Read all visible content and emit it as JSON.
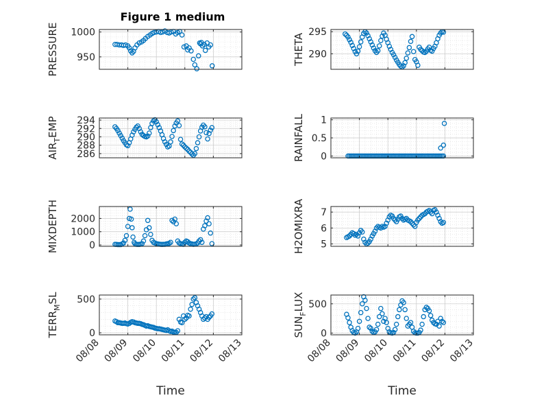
{
  "figure": {
    "title": "Figure 1 medium",
    "marker_color": "#0072BD"
  },
  "x_tick_labels": [
    "08/08",
    "08/09",
    "08/10",
    "08/11",
    "08/12",
    "08/13"
  ],
  "chart_data": [
    {
      "type": "scatter",
      "ylabel_main": "PRESSURE",
      "ylabel_sub": "",
      "yticks": [
        950,
        1000
      ],
      "ylim": [
        925,
        1005
      ],
      "xlim": [
        0,
        5
      ],
      "grid": true,
      "x": [
        0.55,
        0.62,
        0.7,
        0.78,
        0.85,
        0.92,
        1.0,
        1.05,
        1.1,
        1.15,
        1.2,
        1.25,
        1.32,
        1.4,
        1.48,
        1.55,
        1.62,
        1.7,
        1.78,
        1.85,
        1.92,
        2.0,
        2.08,
        2.15,
        2.22,
        2.3,
        2.38,
        2.45,
        2.52,
        2.6,
        2.68,
        2.75,
        2.82,
        2.9,
        2.97,
        3.05,
        3.1,
        3.15,
        3.22,
        3.3,
        3.35,
        3.42,
        3.48,
        3.52,
        3.55,
        3.58,
        3.62,
        3.68,
        3.72,
        3.78,
        3.84,
        3.9,
        3.96
      ],
      "y": [
        975,
        975,
        974,
        974,
        973,
        974,
        972,
        968,
        962,
        958,
        961,
        968,
        974,
        978,
        980,
        983,
        987,
        991,
        994,
        997,
        999,
        1000,
        1001,
        999,
        1000,
        1002,
        999,
        998,
        1000,
        1001,
        996,
        999,
        1001,
        994,
        970,
        972,
        964,
        968,
        962,
        945,
        934,
        926,
        952,
        978,
        976,
        979,
        972,
        975,
        963,
        978,
        970,
        974,
        932
      ]
    },
    {
      "type": "scatter",
      "ylabel_main": "THETA",
      "ylabel_sub": "",
      "yticks": [
        290,
        295
      ],
      "ylim": [
        286.5,
        295.5
      ],
      "xlim": [
        0,
        5
      ],
      "grid": true,
      "x": [
        0.5,
        0.55,
        0.6,
        0.65,
        0.7,
        0.75,
        0.8,
        0.85,
        0.9,
        0.95,
        1.0,
        1.05,
        1.1,
        1.15,
        1.2,
        1.25,
        1.3,
        1.35,
        1.4,
        1.45,
        1.5,
        1.55,
        1.6,
        1.65,
        1.7,
        1.75,
        1.8,
        1.85,
        1.9,
        1.95,
        2.0,
        2.05,
        2.1,
        2.15,
        2.2,
        2.25,
        2.3,
        2.35,
        2.4,
        2.45,
        2.5,
        2.55,
        2.6,
        2.65,
        2.7,
        2.75,
        2.8,
        2.85,
        2.9,
        2.95,
        3.0,
        3.05,
        3.1,
        3.15,
        3.2,
        3.25,
        3.3,
        3.35,
        3.4,
        3.45,
        3.5,
        3.55,
        3.6,
        3.65,
        3.7,
        3.75,
        3.8,
        3.85,
        3.9,
        3.95
      ],
      "y": [
        294.5,
        294.2,
        293.8,
        293.2,
        292.6,
        291.9,
        291.2,
        290.5,
        290.0,
        290.6,
        291.6,
        292.7,
        293.8,
        294.6,
        295.0,
        294.7,
        294.1,
        293.4,
        292.7,
        292.0,
        291.3,
        290.7,
        290.3,
        290.7,
        291.8,
        293.0,
        294.0,
        294.7,
        294.2,
        293.3,
        292.5,
        291.7,
        291.0,
        290.3,
        289.8,
        289.2,
        288.6,
        288.1,
        287.6,
        287.2,
        287.0,
        287.3,
        288.0,
        289.0,
        290.2,
        291.4,
        292.8,
        293.9,
        290.5,
        288.7,
        288.2,
        287.4,
        291.5,
        291.0,
        290.7,
        290.4,
        290.3,
        290.6,
        291.1,
        291.5,
        290.8,
        290.6,
        291.2,
        291.7,
        292.5,
        293.4,
        294.2,
        294.7,
        295.0,
        294.9
      ]
    },
    {
      "type": "scatter",
      "ylabel_main": "AIR",
      "ylabel_sub": "T",
      "ylabel_tail": "EMP",
      "yticks": [
        286,
        288,
        290,
        292,
        294
      ],
      "ylim": [
        285,
        294.5
      ],
      "xlim": [
        0,
        5
      ],
      "grid": true,
      "x": [
        0.55,
        0.6,
        0.65,
        0.7,
        0.75,
        0.8,
        0.85,
        0.9,
        0.95,
        1.0,
        1.05,
        1.1,
        1.15,
        1.2,
        1.25,
        1.3,
        1.35,
        1.4,
        1.45,
        1.5,
        1.55,
        1.6,
        1.65,
        1.7,
        1.75,
        1.8,
        1.85,
        1.9,
        1.95,
        2.0,
        2.05,
        2.1,
        2.15,
        2.2,
        2.25,
        2.3,
        2.35,
        2.4,
        2.45,
        2.5,
        2.55,
        2.6,
        2.65,
        2.7,
        2.75,
        2.8,
        2.85,
        2.9,
        2.95,
        3.0,
        3.05,
        3.1,
        3.15,
        3.2,
        3.25,
        3.3,
        3.35,
        3.4,
        3.45,
        3.5,
        3.55,
        3.6,
        3.65,
        3.7,
        3.75,
        3.8,
        3.85,
        3.9,
        3.95
      ],
      "y": [
        292.4,
        292.0,
        291.5,
        290.9,
        290.3,
        289.7,
        289.1,
        288.6,
        288.1,
        287.9,
        288.6,
        289.5,
        290.4,
        291.2,
        291.8,
        292.3,
        292.6,
        292.0,
        291.2,
        290.6,
        290.3,
        290.1,
        290.0,
        290.2,
        290.9,
        292.2,
        293.2,
        293.8,
        294.1,
        293.6,
        292.9,
        292.2,
        291.4,
        290.5,
        289.6,
        288.8,
        288.2,
        287.6,
        287.8,
        288.8,
        290.1,
        291.5,
        292.6,
        293.3,
        293.8,
        292.7,
        289.4,
        288.3,
        288.0,
        287.6,
        287.3,
        287.0,
        286.6,
        286.3,
        285.9,
        285.6,
        286.0,
        287.2,
        288.6,
        290.0,
        291.4,
        292.3,
        292.8,
        292.4,
        291.0,
        289.5,
        290.8,
        291.6,
        292.2
      ]
    },
    {
      "type": "scatter",
      "ylabel_main": "RAINFALL",
      "ylabel_sub": "",
      "yticks": [
        0,
        0.5,
        1
      ],
      "ylim": [
        -0.05,
        1.05
      ],
      "xlim": [
        0,
        5
      ],
      "grid": true,
      "x": [
        0.6,
        0.65,
        0.7,
        0.75,
        0.8,
        0.85,
        0.9,
        0.95,
        1.0,
        1.05,
        1.1,
        1.15,
        1.2,
        1.25,
        1.3,
        1.35,
        1.4,
        1.45,
        1.5,
        1.55,
        1.6,
        1.65,
        1.7,
        1.75,
        1.8,
        1.85,
        1.9,
        1.95,
        2.0,
        2.05,
        2.1,
        2.15,
        2.2,
        2.25,
        2.3,
        2.35,
        2.4,
        2.45,
        2.5,
        2.55,
        2.6,
        2.65,
        2.7,
        2.75,
        2.8,
        2.85,
        2.9,
        2.95,
        3.0,
        3.05,
        3.1,
        3.15,
        3.2,
        3.25,
        3.3,
        3.35,
        3.4,
        3.45,
        3.5,
        3.55,
        3.6,
        3.65,
        3.7,
        3.75,
        3.8,
        3.85,
        3.9,
        3.95,
        3.85,
        3.95,
        3.98
      ],
      "y": [
        0,
        0,
        0,
        0,
        0,
        0,
        0,
        0,
        0,
        0,
        0,
        0,
        0,
        0,
        0,
        0,
        0,
        0,
        0,
        0,
        0,
        0,
        0,
        0,
        0,
        0,
        0,
        0,
        0,
        0,
        0,
        0,
        0,
        0,
        0,
        0,
        0,
        0,
        0,
        0,
        0,
        0,
        0,
        0,
        0,
        0,
        0,
        0,
        0,
        0,
        0,
        0,
        0,
        0,
        0,
        0,
        0,
        0,
        0,
        0,
        0,
        0,
        0,
        0,
        0,
        0,
        0,
        0,
        0.22,
        0.3,
        0.9
      ]
    },
    {
      "type": "scatter",
      "ylabel_main": "MIXDEPTH",
      "ylabel_sub": "",
      "yticks": [
        0,
        1000,
        2000
      ],
      "ylim": [
        -100,
        2900
      ],
      "xlim": [
        0,
        5
      ],
      "grid": true,
      "x": [
        0.55,
        0.6,
        0.65,
        0.7,
        0.75,
        0.8,
        0.85,
        0.9,
        0.95,
        1.0,
        1.05,
        1.08,
        1.12,
        1.15,
        1.18,
        1.22,
        1.25,
        1.3,
        1.35,
        1.4,
        1.45,
        1.5,
        1.55,
        1.6,
        1.65,
        1.7,
        1.75,
        1.8,
        1.85,
        1.9,
        1.95,
        2.0,
        2.05,
        2.1,
        2.15,
        2.2,
        2.25,
        2.3,
        2.35,
        2.4,
        2.45,
        2.5,
        2.55,
        2.6,
        2.65,
        2.7,
        2.75,
        2.8,
        2.85,
        2.9,
        2.95,
        3.0,
        3.05,
        3.1,
        3.15,
        3.2,
        3.25,
        3.3,
        3.35,
        3.4,
        3.45,
        3.5,
        3.55,
        3.6,
        3.65,
        3.7,
        3.75,
        3.8,
        3.85,
        3.9,
        3.95
      ],
      "y": [
        50,
        40,
        30,
        30,
        30,
        80,
        150,
        350,
        700,
        1400,
        2000,
        2700,
        1950,
        1300,
        600,
        200,
        100,
        50,
        40,
        40,
        60,
        100,
        300,
        700,
        1150,
        1850,
        1300,
        800,
        350,
        200,
        150,
        100,
        80,
        60,
        50,
        40,
        50,
        50,
        80,
        100,
        120,
        200,
        1850,
        1750,
        1950,
        1600,
        300,
        150,
        100,
        80,
        50,
        200,
        300,
        250,
        150,
        100,
        80,
        50,
        60,
        80,
        150,
        300,
        400,
        200,
        1200,
        1450,
        1800,
        2050,
        1600,
        900,
        100
      ]
    },
    {
      "type": "scatter",
      "ylabel_main": "H2OMIXRA",
      "ylabel_sub": "",
      "yticks": [
        5,
        6,
        7
      ],
      "ylim": [
        4.85,
        7.35
      ],
      "xlim": [
        0,
        5
      ],
      "grid": true,
      "x": [
        0.55,
        0.6,
        0.65,
        0.7,
        0.75,
        0.8,
        0.85,
        0.9,
        0.95,
        1.0,
        1.05,
        1.1,
        1.15,
        1.2,
        1.25,
        1.3,
        1.35,
        1.4,
        1.45,
        1.5,
        1.55,
        1.6,
        1.65,
        1.7,
        1.75,
        1.8,
        1.85,
        1.9,
        1.95,
        2.0,
        2.05,
        2.1,
        2.15,
        2.2,
        2.25,
        2.3,
        2.35,
        2.4,
        2.45,
        2.5,
        2.55,
        2.6,
        2.65,
        2.7,
        2.75,
        2.8,
        2.85,
        2.9,
        2.95,
        3.0,
        3.05,
        3.1,
        3.15,
        3.2,
        3.25,
        3.3,
        3.35,
        3.4,
        3.45,
        3.5,
        3.55,
        3.6,
        3.65,
        3.7,
        3.75,
        3.8,
        3.85,
        3.9,
        3.95
      ],
      "y": [
        5.4,
        5.45,
        5.5,
        5.6,
        5.7,
        5.65,
        5.55,
        5.6,
        5.5,
        5.7,
        5.85,
        5.75,
        5.3,
        5.1,
        5.0,
        5.05,
        5.15,
        5.3,
        5.5,
        5.65,
        5.8,
        6.0,
        6.1,
        6.05,
        6.0,
        6.1,
        6.05,
        6.1,
        6.3,
        6.5,
        6.7,
        6.8,
        6.75,
        6.6,
        6.5,
        6.4,
        6.55,
        6.7,
        6.75,
        6.6,
        6.5,
        6.55,
        6.6,
        6.5,
        6.45,
        6.4,
        6.3,
        6.2,
        6.1,
        6.35,
        6.5,
        6.6,
        6.7,
        6.8,
        6.85,
        6.9,
        7.0,
        7.05,
        7.1,
        7.0,
        6.9,
        7.1,
        7.15,
        7.0,
        6.8,
        6.6,
        6.4,
        6.3,
        6.35
      ]
    },
    {
      "type": "scatter",
      "ylabel_main": "TERR",
      "ylabel_sub": "M",
      "ylabel_tail": "SL",
      "yticks": [
        0,
        500
      ],
      "ylim": [
        -30,
        560
      ],
      "xlim": [
        0,
        5
      ],
      "grid": true,
      "x": [
        0.55,
        0.6,
        0.65,
        0.7,
        0.75,
        0.8,
        0.85,
        0.9,
        0.95,
        1.0,
        1.05,
        1.1,
        1.15,
        1.2,
        1.25,
        1.3,
        1.35,
        1.4,
        1.45,
        1.5,
        1.55,
        1.6,
        1.65,
        1.7,
        1.75,
        1.8,
        1.85,
        1.9,
        1.95,
        2.0,
        2.05,
        2.1,
        2.15,
        2.2,
        2.25,
        2.3,
        2.35,
        2.4,
        2.45,
        2.5,
        2.55,
        2.6,
        2.65,
        2.7,
        2.75,
        2.8,
        2.85,
        2.9,
        2.95,
        3.0,
        3.05,
        3.1,
        3.15,
        3.2,
        3.25,
        3.3,
        3.35,
        3.4,
        3.45,
        3.5,
        3.55,
        3.6,
        3.65,
        3.7,
        3.75,
        3.8,
        3.85,
        3.9,
        3.95
      ],
      "y": [
        175,
        165,
        150,
        150,
        145,
        140,
        140,
        145,
        135,
        130,
        140,
        155,
        165,
        160,
        150,
        145,
        140,
        140,
        135,
        125,
        120,
        110,
        100,
        105,
        95,
        90,
        85,
        80,
        70,
        65,
        60,
        60,
        55,
        50,
        45,
        40,
        35,
        45,
        30,
        20,
        25,
        10,
        10,
        5,
        30,
        200,
        160,
        150,
        250,
        200,
        220,
        260,
        250,
        350,
        420,
        500,
        520,
        450,
        400,
        350,
        300,
        250,
        200,
        220,
        240,
        200,
        230,
        250,
        280
      ]
    },
    {
      "type": "scatter",
      "ylabel_main": "SUN",
      "ylabel_sub": "F",
      "ylabel_tail": "LUX",
      "yticks": [
        0,
        500
      ],
      "ylim": [
        -30,
        650
      ],
      "xlim": [
        0,
        5
      ],
      "grid": true,
      "x": [
        0.55,
        0.6,
        0.65,
        0.7,
        0.75,
        0.8,
        0.85,
        0.9,
        0.95,
        1.0,
        1.05,
        1.1,
        1.15,
        1.2,
        1.25,
        1.3,
        1.35,
        1.4,
        1.45,
        1.5,
        1.55,
        1.6,
        1.65,
        1.7,
        1.75,
        1.8,
        1.85,
        1.9,
        1.95,
        2.0,
        2.05,
        2.1,
        2.15,
        2.2,
        2.25,
        2.3,
        2.35,
        2.4,
        2.45,
        2.5,
        2.55,
        2.6,
        2.65,
        2.7,
        2.75,
        2.8,
        2.85,
        2.9,
        2.95,
        3.0,
        3.05,
        3.1,
        3.15,
        3.2,
        3.25,
        3.3,
        3.35,
        3.4,
        3.45,
        3.5,
        3.55,
        3.6,
        3.65,
        3.7,
        3.75,
        3.8,
        3.85,
        3.9,
        3.95
      ],
      "y": [
        320,
        260,
        180,
        100,
        40,
        10,
        0,
        20,
        80,
        200,
        350,
        500,
        620,
        560,
        420,
        250,
        100,
        80,
        30,
        10,
        20,
        60,
        150,
        280,
        420,
        330,
        200,
        250,
        180,
        80,
        20,
        5,
        0,
        10,
        60,
        150,
        280,
        400,
        480,
        550,
        520,
        400,
        250,
        120,
        150,
        180,
        100,
        30,
        5,
        0,
        0,
        10,
        50,
        150,
        280,
        400,
        440,
        420,
        380,
        300,
        220,
        180,
        160,
        150,
        200,
        120,
        250,
        200,
        180
      ]
    }
  ]
}
